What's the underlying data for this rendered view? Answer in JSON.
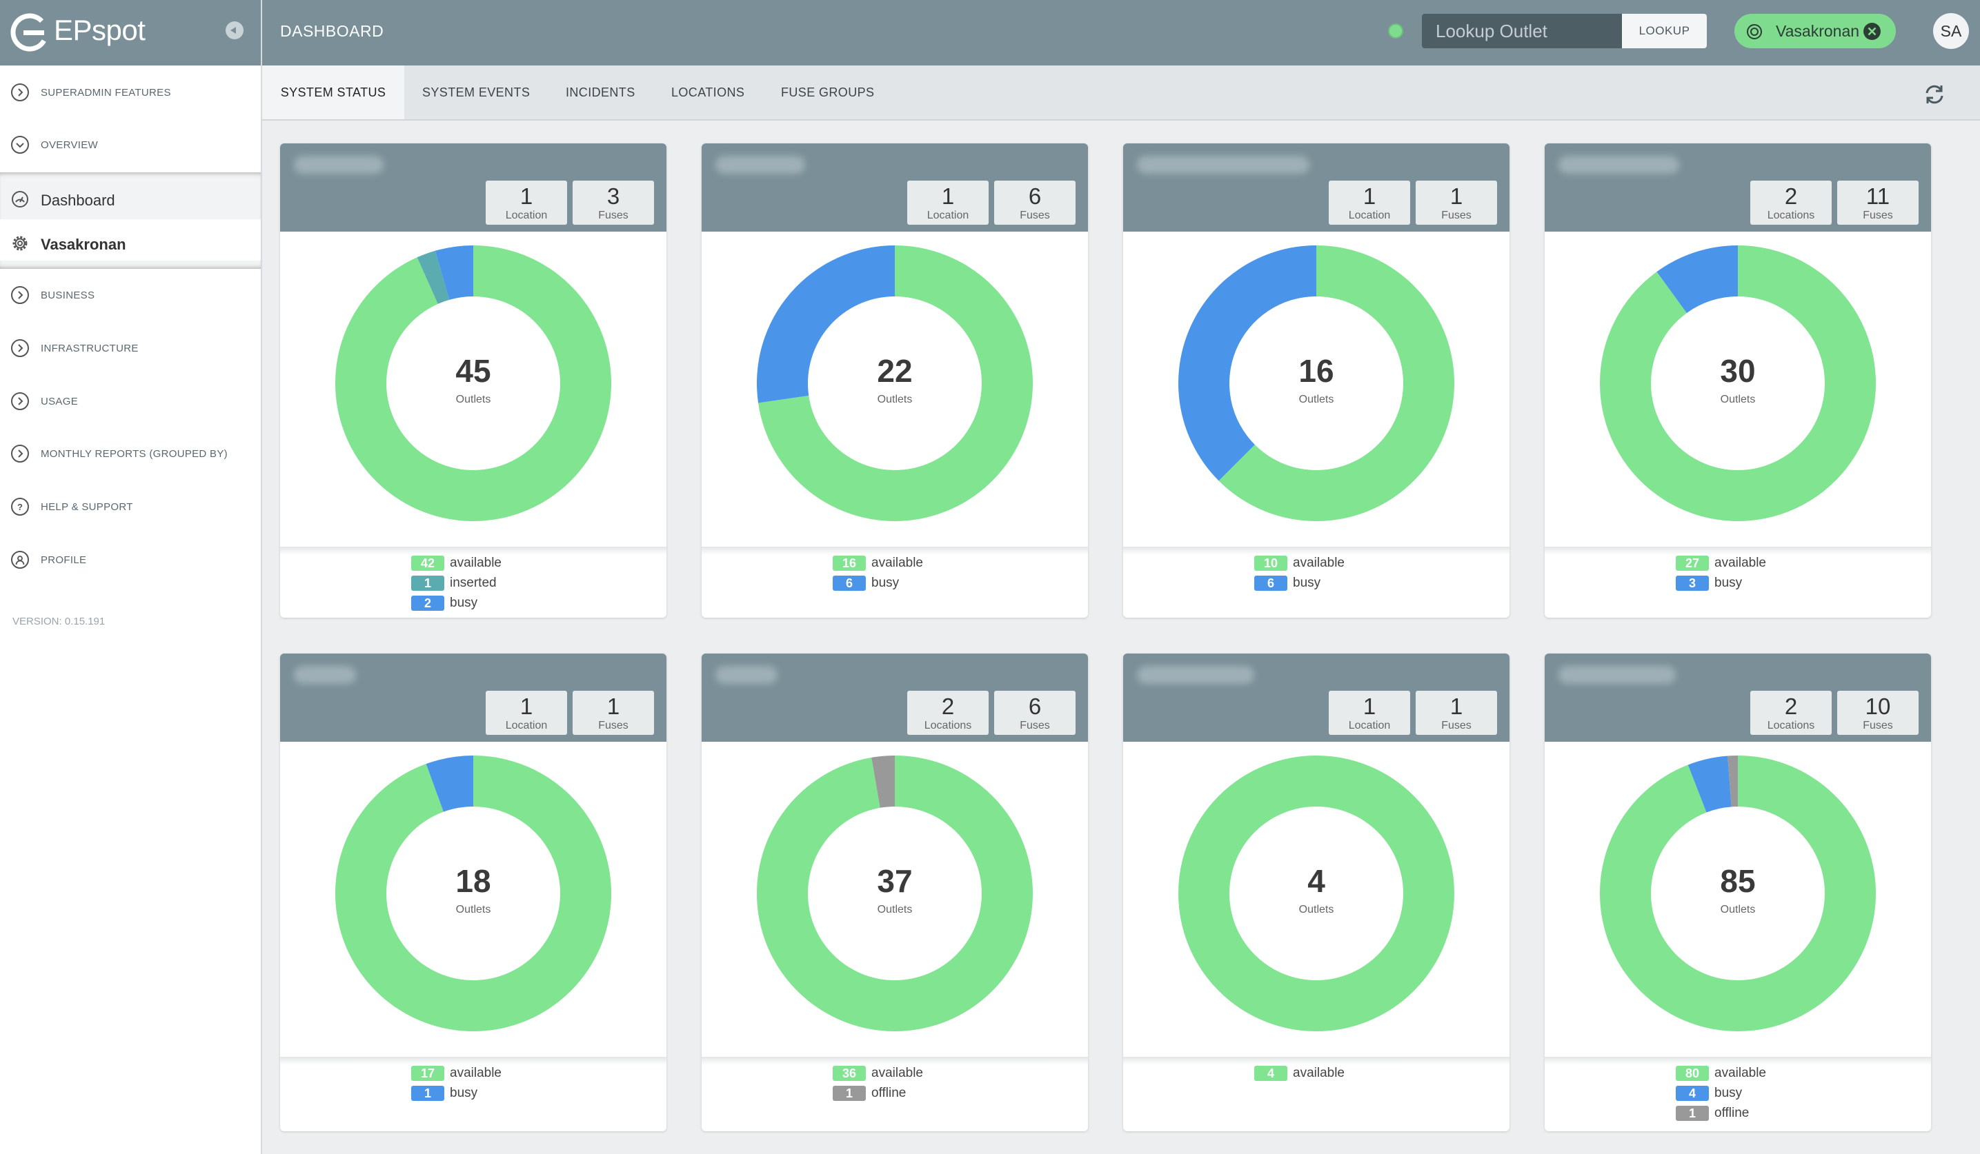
{
  "app": {
    "name": "EPspot",
    "version": "VERSION: 0.15.191"
  },
  "sidebar": {
    "items_top": [
      {
        "label": "SUPERADMIN FEATURES",
        "icon": "chevron-right-circle-icon"
      },
      {
        "label": "OVERVIEW",
        "icon": "chevron-down-circle-icon"
      }
    ],
    "context": [
      {
        "label": "Dashboard",
        "icon": "dashboard-icon"
      },
      {
        "label": "Vasakronan",
        "icon": "gear-icon"
      }
    ],
    "items_bottom": [
      {
        "label": "BUSINESS",
        "icon": "chevron-right-circle-icon"
      },
      {
        "label": "INFRASTRUCTURE",
        "icon": "chevron-right-circle-icon"
      },
      {
        "label": "USAGE",
        "icon": "chevron-right-circle-icon"
      },
      {
        "label": "MONTHLY REPORTS (GROUPED BY)",
        "icon": "chevron-right-circle-icon"
      },
      {
        "label": "HELP & SUPPORT",
        "icon": "question-circle-icon"
      },
      {
        "label": "PROFILE",
        "icon": "user-circle-icon"
      }
    ]
  },
  "header": {
    "title": "DASHBOARD",
    "lookup_placeholder": "Lookup Outlet",
    "lookup_button": "LOOKUP",
    "org": "Vasakronan",
    "avatar": "SA"
  },
  "tabs": [
    "SYSTEM STATUS",
    "SYSTEM EVENTS",
    "INCIDENTS",
    "LOCATIONS",
    "FUSE GROUPS"
  ],
  "colors": {
    "available": "#80e491",
    "inserted": "#5aacb0",
    "busy": "#4a95ea",
    "offline": "#999999",
    "header": "#7a8f97"
  },
  "cards": [
    {
      "locations": "1",
      "locations_label": "Location",
      "fuses": "3",
      "fuses_label": "Fuses",
      "outlets": "45",
      "outlets_label": "Outlets",
      "segments": [
        {
          "status": "available",
          "count": 42
        },
        {
          "status": "inserted",
          "count": 1
        },
        {
          "status": "busy",
          "count": 2
        }
      ]
    },
    {
      "locations": "1",
      "locations_label": "Location",
      "fuses": "6",
      "fuses_label": "Fuses",
      "outlets": "22",
      "outlets_label": "Outlets",
      "segments": [
        {
          "status": "available",
          "count": 16
        },
        {
          "status": "busy",
          "count": 6
        }
      ]
    },
    {
      "locations": "1",
      "locations_label": "Location",
      "fuses": "1",
      "fuses_label": "Fuses",
      "outlets": "16",
      "outlets_label": "Outlets",
      "segments": [
        {
          "status": "available",
          "count": 10
        },
        {
          "status": "busy",
          "count": 6
        }
      ]
    },
    {
      "locations": "2",
      "locations_label": "Locations",
      "fuses": "11",
      "fuses_label": "Fuses",
      "outlets": "30",
      "outlets_label": "Outlets",
      "segments": [
        {
          "status": "available",
          "count": 27
        },
        {
          "status": "busy",
          "count": 3
        }
      ]
    },
    {
      "locations": "1",
      "locations_label": "Location",
      "fuses": "1",
      "fuses_label": "Fuses",
      "outlets": "18",
      "outlets_label": "Outlets",
      "segments": [
        {
          "status": "available",
          "count": 17
        },
        {
          "status": "busy",
          "count": 1
        }
      ]
    },
    {
      "locations": "2",
      "locations_label": "Locations",
      "fuses": "6",
      "fuses_label": "Fuses",
      "outlets": "37",
      "outlets_label": "Outlets",
      "segments": [
        {
          "status": "available",
          "count": 36
        },
        {
          "status": "offline",
          "count": 1
        }
      ]
    },
    {
      "locations": "1",
      "locations_label": "Location",
      "fuses": "1",
      "fuses_label": "Fuses",
      "outlets": "4",
      "outlets_label": "Outlets",
      "segments": [
        {
          "status": "available",
          "count": 4
        }
      ]
    },
    {
      "locations": "2",
      "locations_label": "Locations",
      "fuses": "10",
      "fuses_label": "Fuses",
      "outlets": "85",
      "outlets_label": "Outlets",
      "segments": [
        {
          "status": "available",
          "count": 80
        },
        {
          "status": "busy",
          "count": 4
        },
        {
          "status": "offline",
          "count": 1
        }
      ]
    }
  ]
}
